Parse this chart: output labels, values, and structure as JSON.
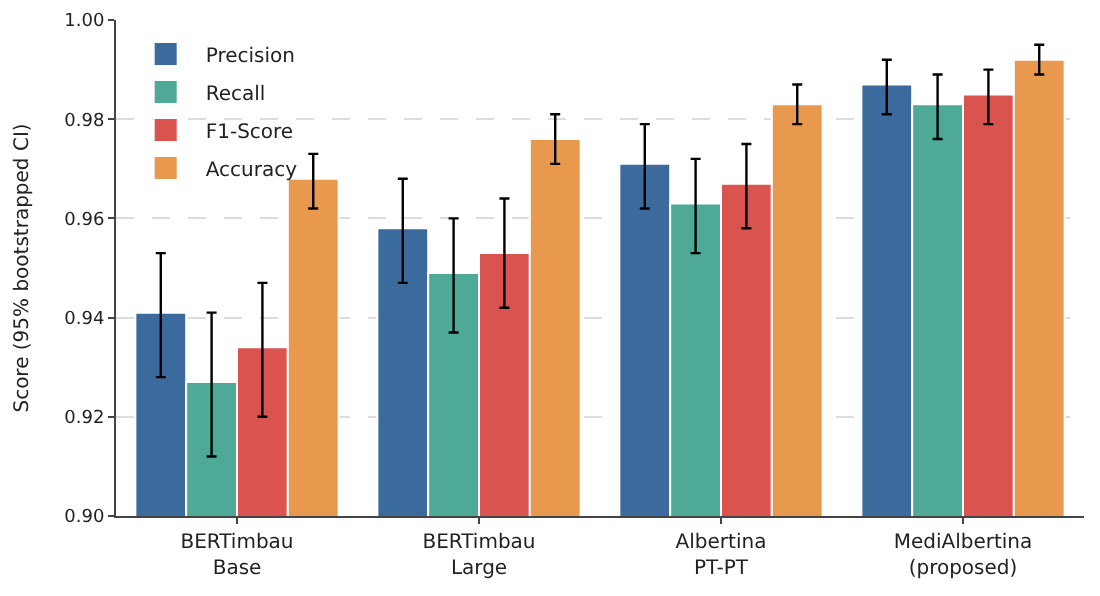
{
  "chart_data": {
    "type": "bar",
    "ylabel": "Score (95% bootstrapped CI)",
    "categories": [
      "BERTimbau\nBase",
      "BERTimbau\nLarge",
      "Albertina\nPT-PT",
      "MediAlbertina\n(proposed)"
    ],
    "series": [
      {
        "name": "Precision",
        "color": "#3b6b9c",
        "values": [
          0.941,
          0.958,
          0.971,
          0.987
        ],
        "errors": [
          [
            0.928,
            0.953
          ],
          [
            0.947,
            0.968
          ],
          [
            0.962,
            0.979
          ],
          [
            0.981,
            0.992
          ]
        ]
      },
      {
        "name": "Recall",
        "color": "#4ea996",
        "values": [
          0.927,
          0.949,
          0.963,
          0.983
        ],
        "errors": [
          [
            0.912,
            0.941
          ],
          [
            0.937,
            0.96
          ],
          [
            0.953,
            0.972
          ],
          [
            0.976,
            0.989
          ]
        ]
      },
      {
        "name": "F1-Score",
        "color": "#d9534f",
        "values": [
          0.934,
          0.953,
          0.967,
          0.985
        ],
        "errors": [
          [
            0.92,
            0.947
          ],
          [
            0.942,
            0.964
          ],
          [
            0.958,
            0.975
          ],
          [
            0.979,
            0.99
          ]
        ]
      },
      {
        "name": "Accuracy",
        "color": "#e8994e",
        "values": [
          0.968,
          0.976,
          0.983,
          0.992
        ],
        "errors": [
          [
            0.962,
            0.973
          ],
          [
            0.971,
            0.981
          ],
          [
            0.979,
            0.987
          ],
          [
            0.989,
            0.995
          ]
        ]
      }
    ],
    "ylim": [
      0.9,
      1.0
    ],
    "yticks": [
      {
        "value": 0.9,
        "label": "0.90"
      },
      {
        "value": 0.92,
        "label": "0.92"
      },
      {
        "value": 0.94,
        "label": "0.94"
      },
      {
        "value": 0.96,
        "label": "0.96"
      },
      {
        "value": 0.98,
        "label": "0.98"
      },
      {
        "value": 1.0,
        "label": "1.00"
      }
    ],
    "grid": "y",
    "legend": "top left"
  }
}
